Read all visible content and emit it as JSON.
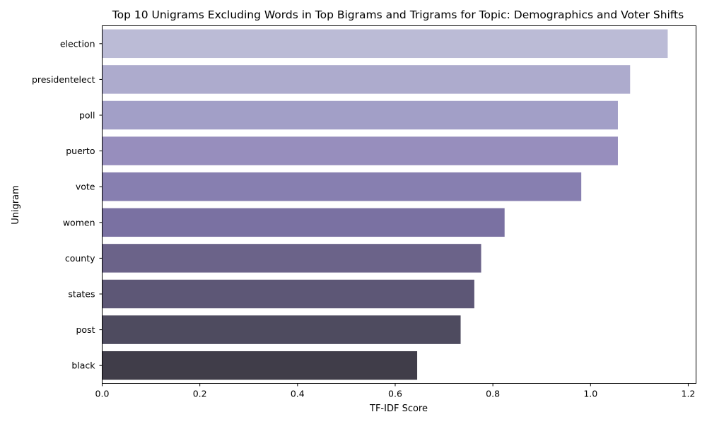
{
  "chart_data": {
    "type": "bar",
    "orientation": "horizontal",
    "title": "Top 10 Unigrams Excluding Words in Top Bigrams and Trigrams for Topic: Demographics and Voter Shifts",
    "xlabel": "TF-IDF Score",
    "ylabel": "Unigram",
    "categories": [
      "election",
      "presidentelect",
      "poll",
      "puerto",
      "vote",
      "women",
      "county",
      "states",
      "post",
      "black"
    ],
    "values": [
      1.158,
      1.081,
      1.056,
      1.056,
      0.981,
      0.824,
      0.776,
      0.762,
      0.734,
      0.645
    ],
    "colors": [
      "#bbbbd6",
      "#adabcd",
      "#a29fc7",
      "#978ebd",
      "#877fb0",
      "#7a71a2",
      "#6b6389",
      "#5d5776",
      "#4e4b5f",
      "#403d49"
    ],
    "xlim": [
      0,
      1.216
    ],
    "xticks": [
      0.0,
      0.2,
      0.4,
      0.6,
      0.8,
      1.0,
      1.2
    ],
    "xtick_labels": [
      "0.0",
      "0.2",
      "0.4",
      "0.6",
      "0.8",
      "1.0",
      "1.2"
    ],
    "grid": false,
    "legend": "none"
  }
}
